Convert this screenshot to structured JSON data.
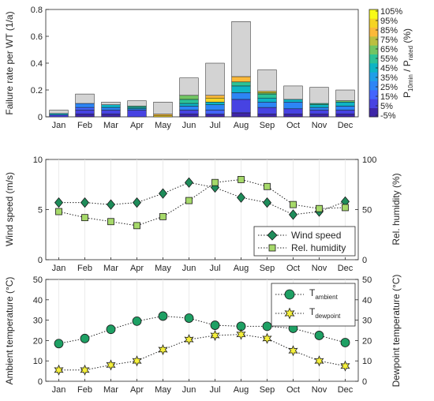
{
  "chart_data": [
    {
      "type": "bar",
      "stacked": true,
      "categories": [
        "Jan",
        "Feb",
        "Mar",
        "Apr",
        "May",
        "Jun",
        "Jul",
        "Aug",
        "Sep",
        "Oct",
        "Nov",
        "Dec"
      ],
      "ylabel": "Failure rate per WT (1/a)",
      "ylim": [
        0,
        0.8
      ],
      "yticks": [
        "0",
        "0.2",
        "0.4",
        "0.6",
        "0.8"
      ],
      "colorbar": {
        "label_main": "P",
        "label_sub1": "10min",
        "label_mid": " / P",
        "label_sub2": "rated",
        "label_unit": " (%)",
        "ticks": [
          "105%",
          "95%",
          "85%",
          "75%",
          "65%",
          "55%",
          "45%",
          "35%",
          "25%",
          "15%",
          "5%",
          "-5%"
        ],
        "colors": [
          "#3e26a8",
          "#4743e2",
          "#4364fd",
          "#2d85f5",
          "#1f9ee8",
          "#0db4c5",
          "#2cc297",
          "#71c563",
          "#bbbf40",
          "#fbb93a",
          "#f5d422",
          "#f9fb14"
        ]
      },
      "bins_colors": [
        "#d3d3d3",
        "#4743e2",
        "#2d85f5",
        "#0db4c5",
        "#2cc297",
        "#71c563",
        "#fbb93a",
        "#f5d422"
      ],
      "totals": [
        0.05,
        0.17,
        0.11,
        0.12,
        0.11,
        0.29,
        0.4,
        0.71,
        0.35,
        0.23,
        0.22,
        0.2
      ],
      "stacks": [
        [
          [
            "#4743e2",
            0.015
          ],
          [
            "#0db4c5",
            0.01
          ],
          [
            "#d3d3d3",
            0.025
          ]
        ],
        [
          [
            "#3e26a8",
            0.02
          ],
          [
            "#4743e2",
            0.03
          ],
          [
            "#4364fd",
            0.02
          ],
          [
            "#2d85f5",
            0.03
          ],
          [
            "#d3d3d3",
            0.07
          ]
        ],
        [
          [
            "#3e26a8",
            0.02
          ],
          [
            "#4743e2",
            0.03
          ],
          [
            "#2d85f5",
            0.02
          ],
          [
            "#0db4c5",
            0.02
          ],
          [
            "#d3d3d3",
            0.02
          ]
        ],
        [
          [
            "#4743e2",
            0.05
          ],
          [
            "#2d85f5",
            0.01
          ],
          [
            "#0db4c5",
            0.01
          ],
          [
            "#2cc297",
            0.01
          ],
          [
            "#d3d3d3",
            0.04
          ]
        ],
        [
          [
            "#f5d422",
            0.01
          ],
          [
            "#fbb93a",
            0.01
          ],
          [
            "#d3d3d3",
            0.09
          ]
        ],
        [
          [
            "#3e26a8",
            0.02
          ],
          [
            "#4743e2",
            0.03
          ],
          [
            "#2d85f5",
            0.03
          ],
          [
            "#0db4c5",
            0.02
          ],
          [
            "#2cc297",
            0.03
          ],
          [
            "#71c563",
            0.03
          ],
          [
            "#d3d3d3",
            0.13
          ]
        ],
        [
          [
            "#3e26a8",
            0.02
          ],
          [
            "#4364fd",
            0.03
          ],
          [
            "#2d85f5",
            0.04
          ],
          [
            "#0db4c5",
            0.02
          ],
          [
            "#f5d422",
            0.03
          ],
          [
            "#fbb93a",
            0.02
          ],
          [
            "#d3d3d3",
            0.24
          ]
        ],
        [
          [
            "#3e26a8",
            0.03
          ],
          [
            "#4743e2",
            0.1
          ],
          [
            "#2d85f5",
            0.05
          ],
          [
            "#0db4c5",
            0.05
          ],
          [
            "#2cc297",
            0.03
          ],
          [
            "#fbb93a",
            0.04
          ],
          [
            "#d3d3d3",
            0.41
          ]
        ],
        [
          [
            "#3e26a8",
            0.02
          ],
          [
            "#4743e2",
            0.05
          ],
          [
            "#2d85f5",
            0.04
          ],
          [
            "#0db4c5",
            0.03
          ],
          [
            "#2cc297",
            0.03
          ],
          [
            "#71c563",
            0.01
          ],
          [
            "#f5d422",
            0.01
          ],
          [
            "#d3d3d3",
            0.16
          ]
        ],
        [
          [
            "#3e26a8",
            0.02
          ],
          [
            "#4743e2",
            0.04
          ],
          [
            "#2d85f5",
            0.05
          ],
          [
            "#0db4c5",
            0.02
          ],
          [
            "#d3d3d3",
            0.1
          ]
        ],
        [
          [
            "#3e26a8",
            0.02
          ],
          [
            "#4743e2",
            0.03
          ],
          [
            "#2d85f5",
            0.02
          ],
          [
            "#0db4c5",
            0.02
          ],
          [
            "#2cc297",
            0.01
          ],
          [
            "#d3d3d3",
            0.12
          ]
        ],
        [
          [
            "#3e26a8",
            0.02
          ],
          [
            "#4743e2",
            0.03
          ],
          [
            "#2d85f5",
            0.03
          ],
          [
            "#0db4c5",
            0.03
          ],
          [
            "#71c563",
            0.01
          ],
          [
            "#d3d3d3",
            0.08
          ]
        ]
      ]
    },
    {
      "type": "line",
      "categories": [
        "Jan",
        "Feb",
        "Mar",
        "Apr",
        "May",
        "Jun",
        "Jul",
        "Aug",
        "Sep",
        "Oct",
        "Nov",
        "Dec"
      ],
      "ylabel": "Wind speed (m/s)",
      "ylabel_right": "Rel. humidity (%)",
      "ylim": [
        0,
        10
      ],
      "ylim_right": [
        0,
        100
      ],
      "yticks": [
        "0",
        "5",
        "10"
      ],
      "yticks_right": [
        "0",
        "50",
        "100"
      ],
      "legend_position": "bottom-right",
      "series": [
        {
          "name": "Wind speed",
          "axis": "left",
          "marker": "diamond",
          "color": "#1e8c5a",
          "values": [
            5.7,
            5.7,
            5.5,
            5.7,
            6.6,
            7.7,
            7.2,
            6.2,
            5.7,
            4.5,
            4.8,
            5.8
          ]
        },
        {
          "name": "Rel. humidity",
          "axis": "right",
          "marker": "square",
          "color": "#a6d96a",
          "values": [
            48,
            42,
            38,
            34,
            43,
            59,
            77,
            80,
            73,
            55,
            51,
            52
          ]
        }
      ]
    },
    {
      "type": "line",
      "categories": [
        "Jan",
        "Feb",
        "Mar",
        "Apr",
        "May",
        "Jun",
        "Jul",
        "Aug",
        "Sep",
        "Oct",
        "Nov",
        "Dec"
      ],
      "ylabel": "Ambient temperature (°C)",
      "ylabel_right": "Dewpoint temperature (°C)",
      "ylim": [
        0,
        50
      ],
      "ylim_right": [
        0,
        50
      ],
      "yticks": [
        "0",
        "10",
        "20",
        "30",
        "40",
        "50"
      ],
      "yticks_right": [
        "0",
        "10",
        "20",
        "30",
        "40",
        "50"
      ],
      "legend_position": "top-right",
      "series": [
        {
          "name_main": "T",
          "name_sub": "ambient",
          "axis": "left",
          "marker": "circle",
          "color": "#1ea064",
          "values": [
            18.5,
            21,
            25.5,
            29.5,
            32,
            31,
            27.5,
            27,
            27,
            26,
            22.5,
            19
          ]
        },
        {
          "name_main": "T",
          "name_sub": "dewpoint",
          "axis": "right",
          "marker": "star",
          "color": "#f5f03c",
          "values": [
            5.5,
            5.5,
            8,
            10,
            15.5,
            20.5,
            22.5,
            23,
            21,
            15,
            10,
            7.5
          ]
        }
      ]
    }
  ]
}
